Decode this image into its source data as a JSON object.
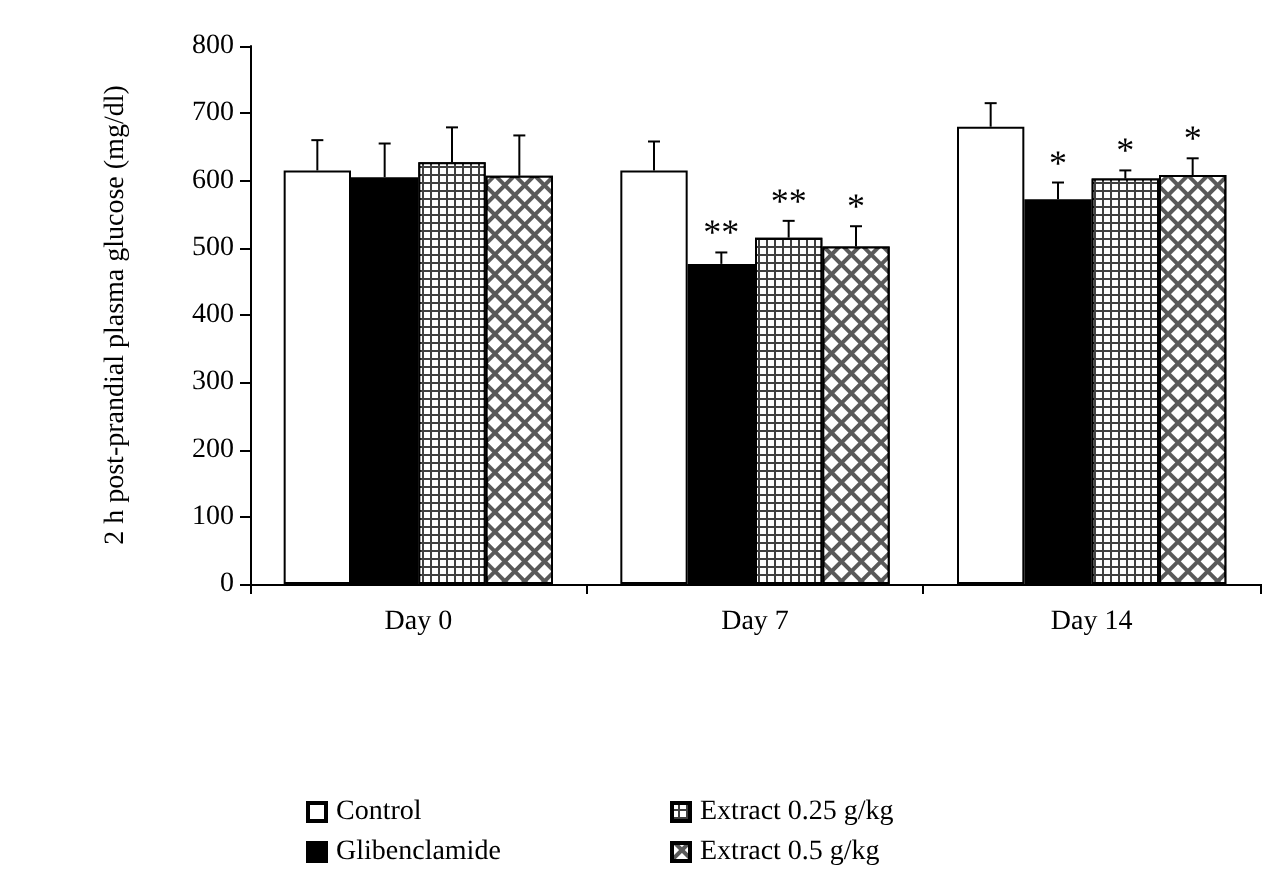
{
  "chart_data": {
    "type": "bar",
    "ylabel": "2 h post-prandial plasma glucose (mg/dl)",
    "categories": [
      "Day 0",
      "Day 7",
      "Day 14"
    ],
    "series": [
      {
        "name": "Control",
        "color": "#ffffff",
        "values": [
          615,
          615,
          680
        ],
        "errors": [
          45,
          43,
          35
        ]
      },
      {
        "name": "Glibenclamide",
        "color": "#000000",
        "values": [
          605,
          476,
          572
        ],
        "errors": [
          50,
          17,
          25
        ],
        "value_labels": [
          null,
          "**",
          "*"
        ]
      },
      {
        "name": "Extract 0.25 g/kg",
        "color": "#404040",
        "values": [
          627,
          515,
          603
        ],
        "errors": [
          52,
          25,
          12
        ],
        "value_labels": [
          null,
          "**",
          "*"
        ]
      },
      {
        "name": "Extract 0.5 g/kg",
        "color": "#595959",
        "values": [
          607,
          502,
          608
        ],
        "errors": [
          60,
          30,
          25
        ],
        "value_labels": [
          null,
          "*",
          "*"
        ]
      }
    ],
    "ylim": [
      0,
      800
    ],
    "yticks": [
      0,
      100,
      200,
      300,
      400,
      500,
      600,
      700,
      800
    ],
    "grid": false,
    "legend": "bottom"
  }
}
